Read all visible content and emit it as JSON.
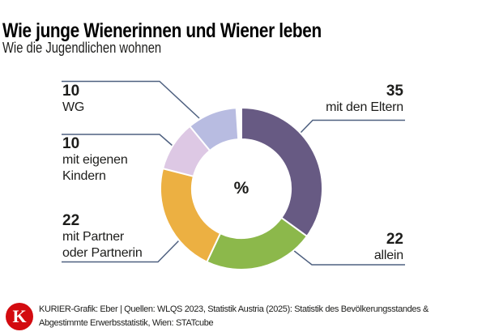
{
  "header": {
    "title": "Wie junge Wienerinnen und Wiener leben",
    "subtitle": "Wie die Jugendlichen wohnen"
  },
  "chart_data": {
    "type": "pie",
    "variant": "donut",
    "unit": "percent",
    "center_label": "%",
    "start_angle_deg": 0,
    "direction": "clockwise",
    "segments": [
      {
        "key": "eltern",
        "label": "mit den Eltern",
        "value": 35,
        "color": "#675a83"
      },
      {
        "key": "allein",
        "label": "allein",
        "value": 22,
        "color": "#8cb84b"
      },
      {
        "key": "partner",
        "label": "mit Partner oder Partnerin",
        "value": 22,
        "color": "#ecb042"
      },
      {
        "key": "kinder",
        "label": "mit eigenen Kindern",
        "value": 10,
        "color": "#ddc8e4"
      },
      {
        "key": "wg",
        "label": "WG",
        "value": 10,
        "color": "#b8bce1"
      }
    ],
    "leader_color": "#4f6180",
    "callouts": [
      {
        "key": "wg",
        "value": "10",
        "lines": [
          "WG"
        ]
      },
      {
        "key": "kinder",
        "value": "10",
        "lines": [
          "mit eigenen",
          "Kindern"
        ]
      },
      {
        "key": "partner",
        "value": "22",
        "lines": [
          "mit Partner",
          "oder Partnerin"
        ]
      },
      {
        "key": "eltern",
        "value": "35",
        "lines": [
          "mit den Eltern"
        ]
      },
      {
        "key": "allein",
        "value": "22",
        "lines": [
          "allein"
        ]
      }
    ]
  },
  "footer": {
    "logo_letter": "K",
    "logo_color": "#d30b10",
    "credit_lines": [
      "KURIER-Grafik: Eber | Quellen: WLQS 2023, Statistik Austria (2025): Statistik des Bevölkerungsstandes &",
      "Abgestimmte Erwerbsstatistik, Wien: STATcube"
    ]
  }
}
